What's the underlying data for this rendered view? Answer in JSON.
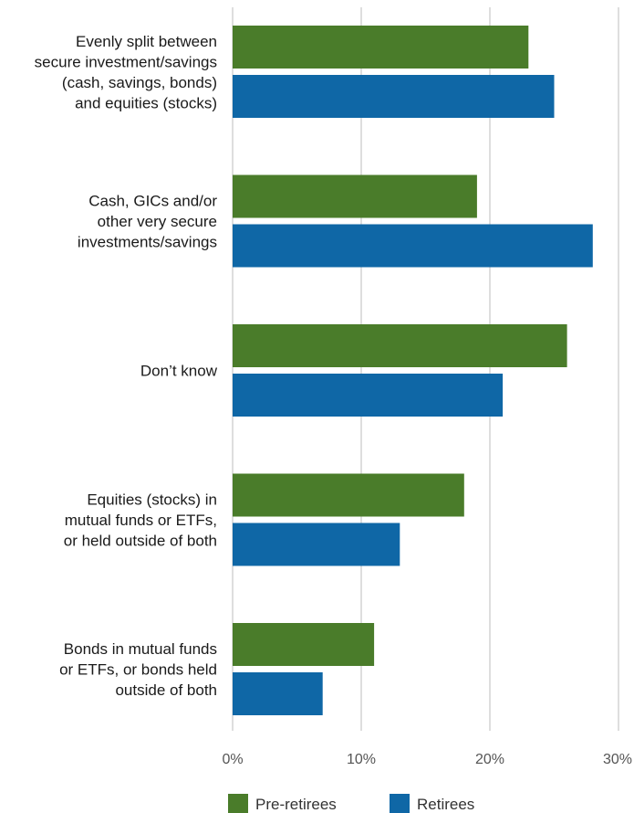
{
  "chart_data": {
    "type": "bar",
    "orientation": "horizontal",
    "title": "",
    "xlabel": "",
    "ylabel": "",
    "categories": [
      [
        "Evenly split between",
        "secure investment/savings",
        "(cash, savings, bonds)",
        "and equities (stocks)"
      ],
      [
        "Cash, GICs and/or",
        "other very secure",
        "investments/savings"
      ],
      [
        "Don’t know"
      ],
      [
        "Equities (stocks) in",
        "mutual funds or ETFs,",
        "or held outside of both"
      ],
      [
        "Bonds in mutual funds",
        "or ETFs, or bonds held",
        "outside of both"
      ]
    ],
    "series": [
      {
        "name": "Pre-retirees",
        "color": "#4a7c2a",
        "values": [
          23,
          19,
          26,
          18,
          11
        ]
      },
      {
        "name": "Retirees",
        "color": "#0f67a6",
        "values": [
          25,
          28,
          21,
          13,
          7
        ]
      }
    ],
    "xlim": [
      0,
      30
    ],
    "xticks": [
      0,
      10,
      20,
      30
    ],
    "tick_labels": [
      "0%",
      "10%",
      "20%",
      "30%"
    ],
    "grid": true,
    "legend": "bottom-center"
  }
}
